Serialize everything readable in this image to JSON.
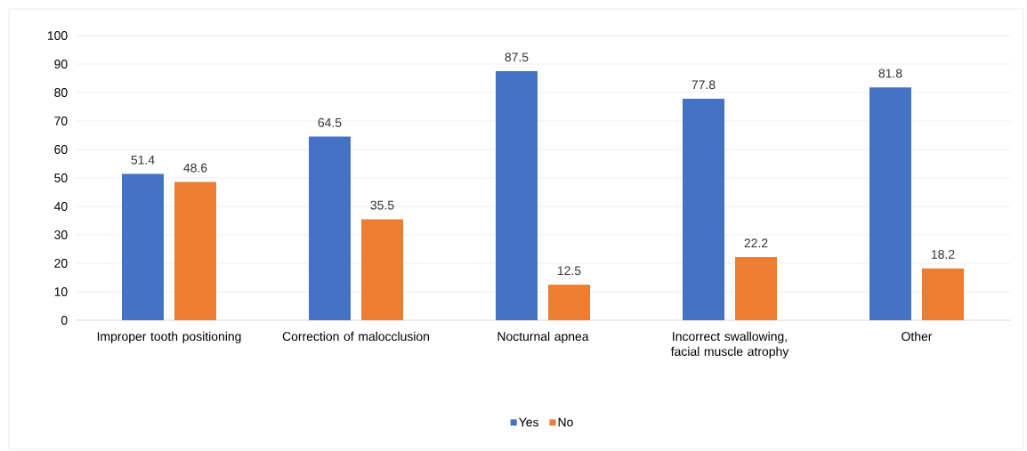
{
  "chart_data": {
    "type": "bar",
    "categories": [
      "Improper tooth positioning",
      "Correction of malocclusion",
      "Nocturnal apnea",
      "Incorrect swallowing, facial muscle atrophy",
      "Other"
    ],
    "series": [
      {
        "name": "Yes",
        "color": "#4472c4",
        "values": [
          51.4,
          64.5,
          87.5,
          77.8,
          81.8
        ]
      },
      {
        "name": "No",
        "color": "#ed7d31",
        "values": [
          48.6,
          35.5,
          12.5,
          22.2,
          18.2
        ]
      }
    ],
    "ylim": [
      0,
      100
    ],
    "yticks": [
      0,
      10,
      20,
      30,
      40,
      50,
      60,
      70,
      80,
      90,
      100
    ],
    "grid": "y",
    "legend": "bottom",
    "data_labels": true
  }
}
